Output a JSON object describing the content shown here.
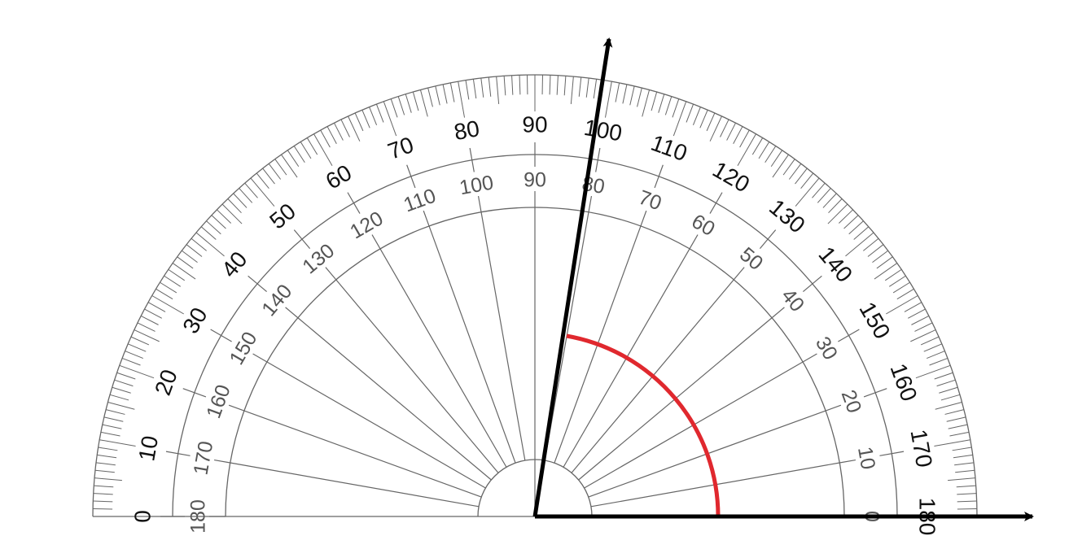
{
  "outer_scale": {
    "labels": [
      0,
      10,
      20,
      30,
      40,
      50,
      60,
      70,
      80,
      90,
      100,
      110,
      120,
      130,
      140,
      150,
      160,
      170,
      180
    ]
  },
  "inner_scale": {
    "labels": [
      180,
      170,
      160,
      150,
      140,
      130,
      120,
      110,
      100,
      90,
      80,
      70,
      60,
      50,
      40,
      30,
      20,
      10,
      0
    ]
  }
}
